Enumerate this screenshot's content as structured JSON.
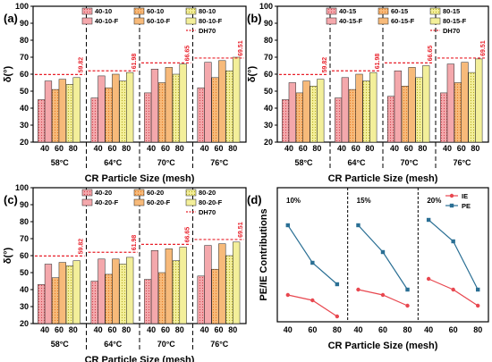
{
  "colors": {
    "c10": "#f4a8ac",
    "c10_dot": "#d2434e",
    "c60": "#f7ba7a",
    "c60_dot": "#e87b1e",
    "c80": "#f3ef9a",
    "c80_dot": "#b7ad1f",
    "dh70": "#e8202a",
    "IE": "#e8474f",
    "PE": "#2a6f94"
  },
  "chart_data": [
    {
      "panel": "(a)",
      "type": "bar",
      "ylabel": "δ(°)",
      "xlabel": "CR Particle Size (mesh)",
      "ylim": [
        20,
        100
      ],
      "yticks": [
        20,
        30,
        40,
        50,
        60,
        70,
        80,
        90,
        100
      ],
      "groups": [
        "58°C",
        "64°C",
        "70°C",
        "76°C"
      ],
      "meshes": [
        "40",
        "60",
        "80"
      ],
      "legend": [
        "40-10",
        "40-10-F",
        "60-10",
        "60-10-F",
        "80-10",
        "80-10-F",
        "DH70"
      ],
      "plain": [
        [
          45,
          51,
          54
        ],
        [
          46,
          52,
          56
        ],
        [
          49,
          55,
          60
        ],
        [
          52,
          58,
          62
        ]
      ],
      "foamed": [
        [
          56,
          57,
          58
        ],
        [
          59,
          60,
          61
        ],
        [
          63,
          64,
          66
        ],
        [
          67,
          68,
          70
        ]
      ],
      "dh70": [
        59.82,
        61.98,
        66.65,
        69.51
      ]
    },
    {
      "panel": "(b)",
      "type": "bar",
      "ylabel": "δ(°)",
      "xlabel": "CR Particle Size (mesh)",
      "ylim": [
        20,
        100
      ],
      "yticks": [
        20,
        30,
        40,
        50,
        60,
        70,
        80,
        90,
        100
      ],
      "groups": [
        "58°C",
        "64°C",
        "70°C",
        "76°C"
      ],
      "meshes": [
        "40",
        "60",
        "80"
      ],
      "legend": [
        "40-15",
        "40-15-F",
        "60-15",
        "60-15-F",
        "80-15",
        "80-15-F",
        "DH70"
      ],
      "plain": [
        [
          45,
          49,
          53
        ],
        [
          46,
          51,
          56
        ],
        [
          47,
          53,
          58
        ],
        [
          49,
          55,
          61
        ]
      ],
      "foamed": [
        [
          55,
          56,
          57
        ],
        [
          58,
          60,
          61
        ],
        [
          62,
          64,
          65
        ],
        [
          66,
          67,
          69
        ]
      ],
      "dh70": [
        59.82,
        61.98,
        66.65,
        69.51
      ]
    },
    {
      "panel": "(c)",
      "type": "bar",
      "ylabel": "δ(°)",
      "xlabel": "CR Particle Size (mesh)",
      "ylim": [
        20,
        100
      ],
      "yticks": [
        20,
        30,
        40,
        50,
        60,
        70,
        80,
        90,
        100
      ],
      "groups": [
        "58°C",
        "64°C",
        "70°C",
        "76°C"
      ],
      "meshes": [
        "40",
        "60",
        "80"
      ],
      "legend": [
        "40-20",
        "40-20-F",
        "60-20",
        "60-20-F",
        "80-20",
        "80-20-F",
        "DH70"
      ],
      "plain": [
        [
          43,
          47,
          54
        ],
        [
          45,
          49,
          55
        ],
        [
          46,
          50,
          57
        ],
        [
          48,
          52,
          60
        ]
      ],
      "foamed": [
        [
          55,
          56,
          57
        ],
        [
          58,
          58,
          59
        ],
        [
          63,
          64,
          65
        ],
        [
          66,
          67,
          68
        ]
      ],
      "dh70": [
        59.82,
        61.98,
        66.65,
        69.51
      ]
    },
    {
      "panel": "(d)",
      "type": "line",
      "ylabel": "PE/IE Contributions",
      "xlabel": "CR Particle Size (mesh)",
      "ylim": [
        0,
        0.25
      ],
      "segments": [
        "10%",
        "15%",
        "20%"
      ],
      "x": [
        "40",
        "60",
        "80"
      ],
      "series": [
        {
          "name": "IE",
          "values": [
            [
              0.05,
              0.04,
              0.01
            ],
            [
              0.06,
              0.05,
              0.03
            ],
            [
              0.08,
              0.06,
              0.03
            ]
          ]
        },
        {
          "name": "PE",
          "values": [
            [
              0.18,
              0.11,
              0.07
            ],
            [
              0.18,
              0.13,
              0.06
            ],
            [
              0.19,
              0.15,
              0.06
            ]
          ]
        }
      ]
    }
  ]
}
